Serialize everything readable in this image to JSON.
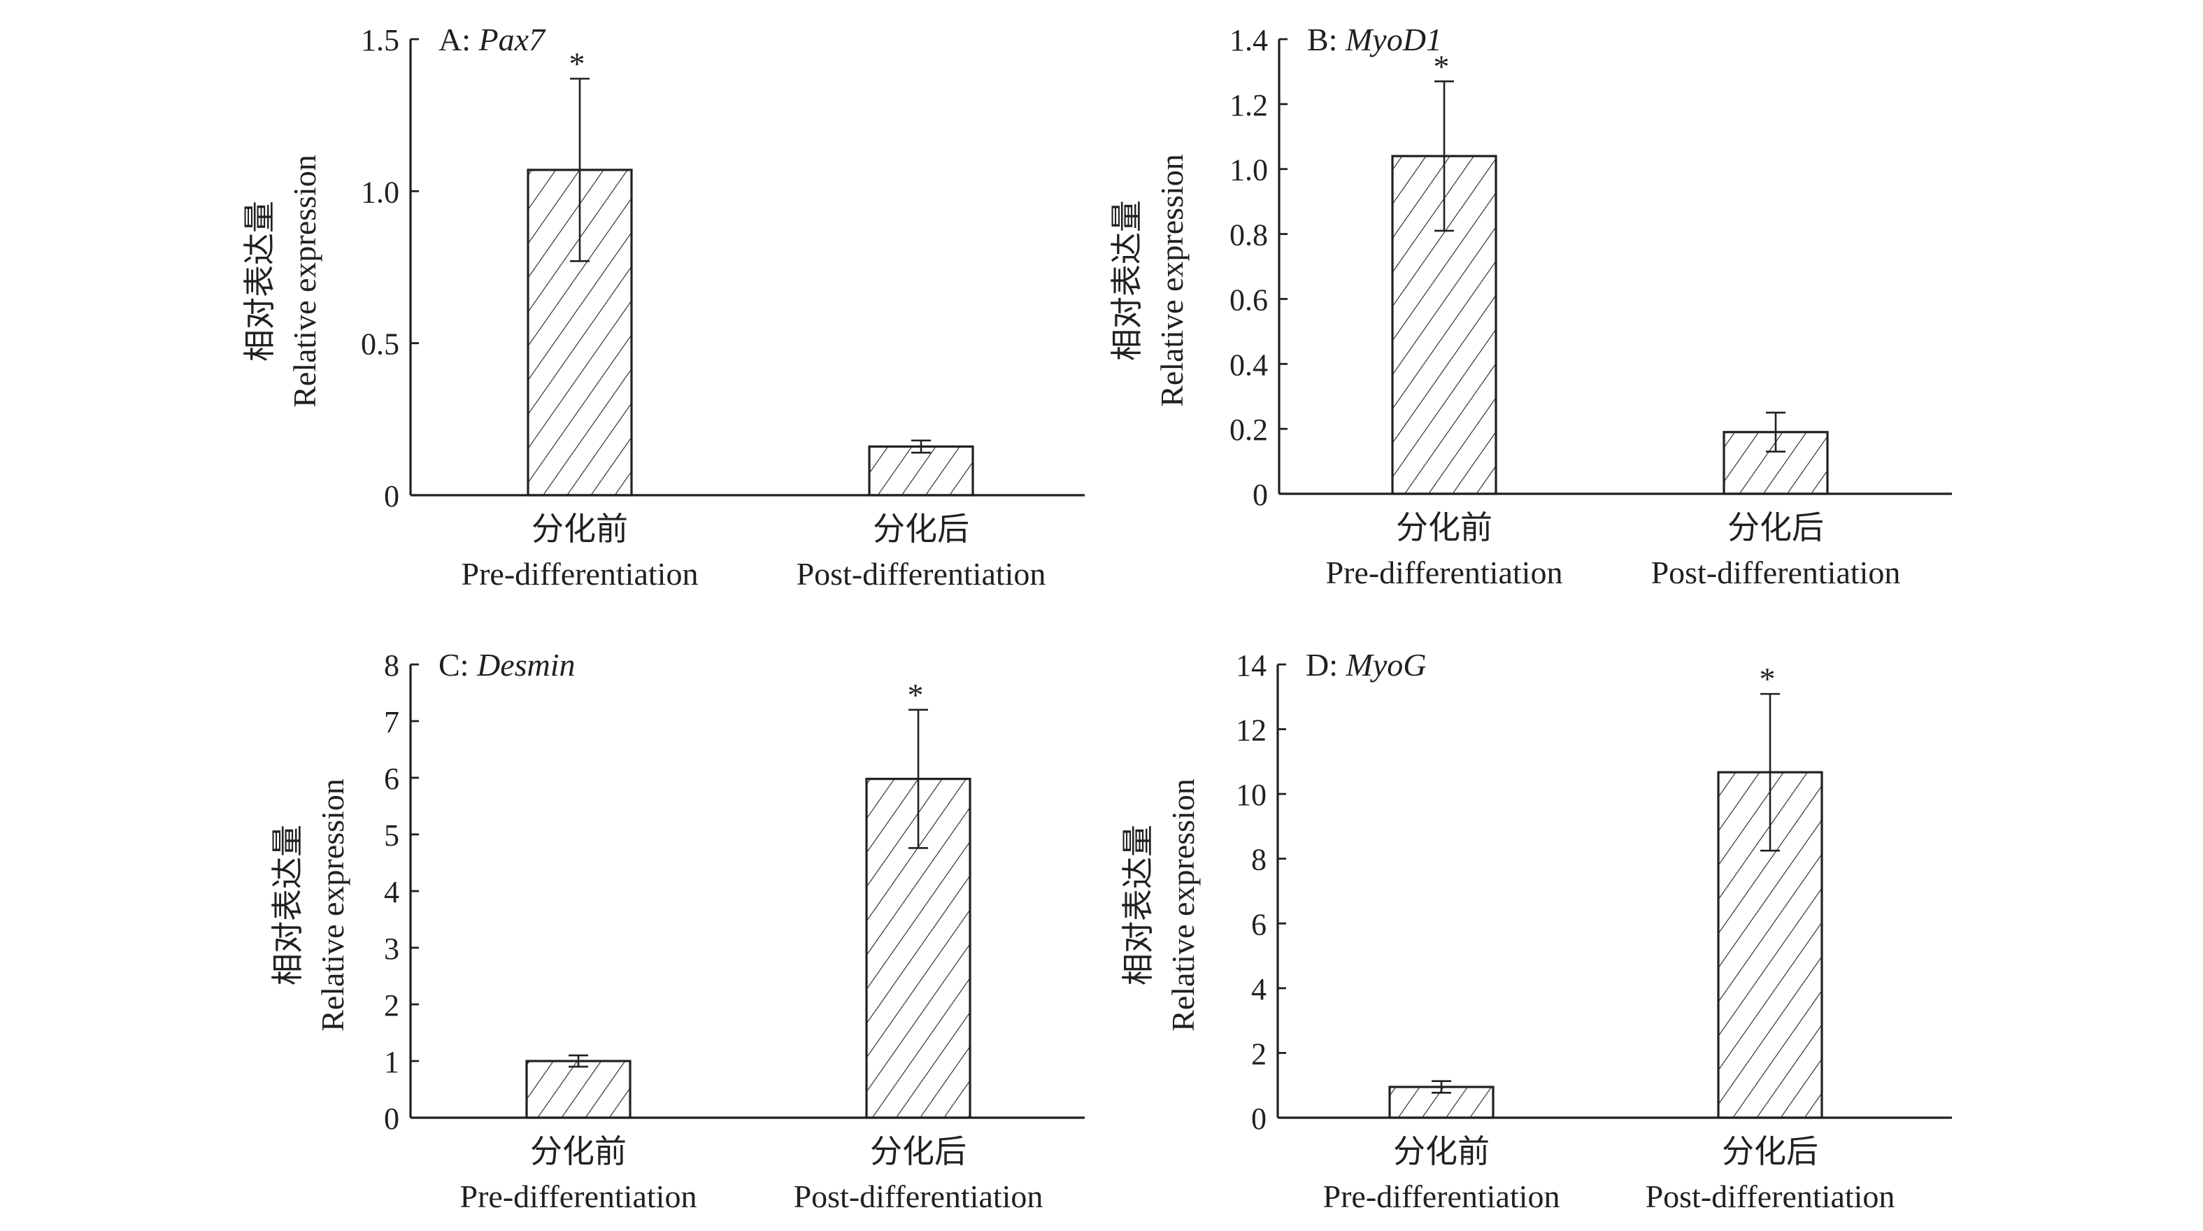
{
  "chart_data": [
    {
      "type": "bar",
      "panel": "A",
      "title_prefix": "A: ",
      "gene": "Pax7",
      "ylabel_cn": "相对表达量",
      "ylabel": "Relative expression",
      "categories_cn": [
        "分化前",
        "分化后"
      ],
      "categories": [
        "Pre-differentiation",
        "Post-differentiation"
      ],
      "values": [
        1.07,
        0.16
      ],
      "errors": [
        0.3,
        0.02
      ],
      "significance": [
        "*",
        ""
      ],
      "ylim": [
        0,
        1.5
      ],
      "yticks": [
        0,
        0.5,
        1.0,
        1.5
      ],
      "ytick_labels": [
        "0",
        "0.5",
        "1.0",
        "1.5"
      ]
    },
    {
      "type": "bar",
      "panel": "B",
      "title_prefix": "B: ",
      "gene": "MyoD1",
      "ylabel_cn": "相对表达量",
      "ylabel": "Relative expression",
      "categories_cn": [
        "分化前",
        "分化后"
      ],
      "categories": [
        "Pre-differentiation",
        "Post-differentiation"
      ],
      "values": [
        1.04,
        0.19
      ],
      "errors": [
        0.23,
        0.06
      ],
      "significance": [
        "*",
        ""
      ],
      "ylim": [
        0,
        1.4
      ],
      "yticks": [
        0,
        0.2,
        0.4,
        0.6,
        0.8,
        1.0,
        1.2,
        1.4
      ],
      "ytick_labels": [
        "0",
        "0.2",
        "0.4",
        "0.6",
        "0.8",
        "1.0",
        "1.2",
        "1.4"
      ]
    },
    {
      "type": "bar",
      "panel": "C",
      "title_prefix": "C: ",
      "gene": "Desmin",
      "ylabel_cn": "相对表达量",
      "ylabel": "Relative expression",
      "categories_cn": [
        "分化前",
        "分化后"
      ],
      "categories": [
        "Pre-differentiation",
        "Post-differentiation"
      ],
      "values": [
        1.0,
        5.98
      ],
      "errors": [
        0.1,
        1.22
      ],
      "significance": [
        "",
        "*"
      ],
      "ylim": [
        0,
        8
      ],
      "yticks": [
        0,
        1,
        2,
        3,
        4,
        5,
        6,
        7,
        8
      ],
      "ytick_labels": [
        "0",
        "1",
        "2",
        "3",
        "4",
        "5",
        "6",
        "7",
        "8"
      ]
    },
    {
      "type": "bar",
      "panel": "D",
      "title_prefix": "D: ",
      "gene": "MyoG",
      "ylabel_cn": "相对表达量",
      "ylabel": "Relative expression",
      "categories_cn": [
        "分化前",
        "分化后"
      ],
      "categories": [
        "Pre-differentiation",
        "Post-differentiation"
      ],
      "values": [
        0.95,
        10.67
      ],
      "errors": [
        0.18,
        2.42
      ],
      "significance": [
        "",
        "*"
      ],
      "ylim": [
        0,
        14
      ],
      "yticks": [
        0,
        2,
        4,
        6,
        8,
        10,
        12,
        14
      ],
      "ytick_labels": [
        "0",
        "2",
        "4",
        "6",
        "8",
        "10",
        "12",
        "14"
      ]
    }
  ]
}
